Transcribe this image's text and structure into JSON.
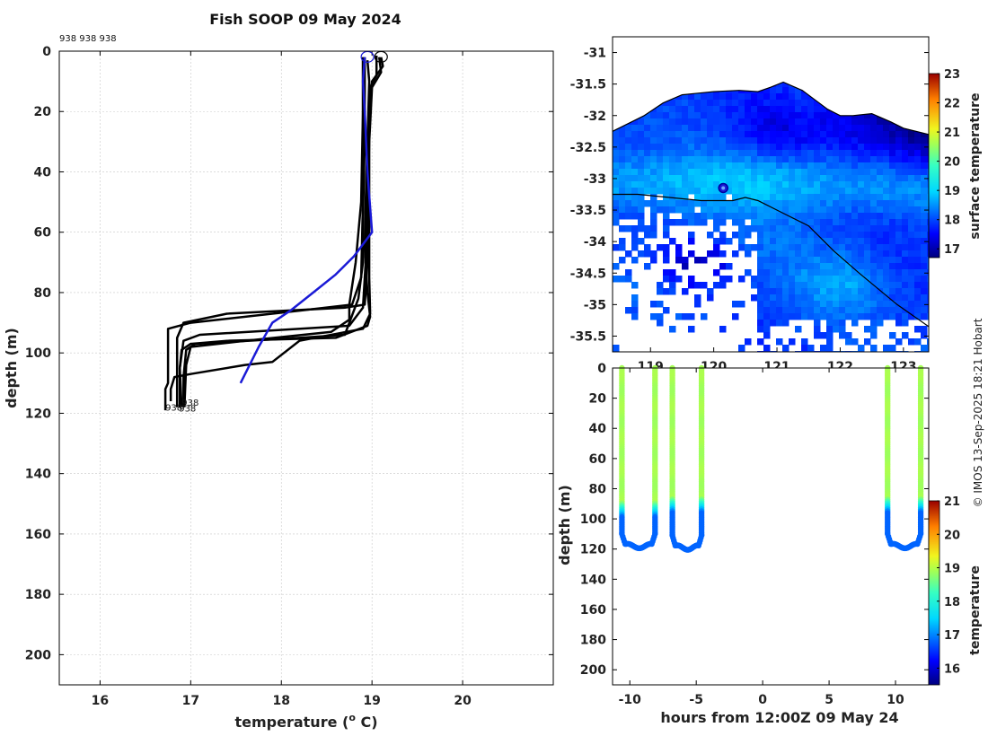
{
  "figure_title": "Fish SOOP 09 May 2024",
  "credit": "© IMOS 13-Sep-2025 18:21 Hobart",
  "chart_data": [
    {
      "id": "profiles",
      "type": "line",
      "xlabel": "temperature (° C)",
      "xlabel_main": "temperature (",
      "xlabel_sup": "o",
      "xlabel_tail": " C)",
      "ylabel": "depth (m)",
      "xlim": [
        15.55,
        21.0
      ],
      "ylim": [
        0,
        210
      ],
      "xticks": [
        "16",
        "17",
        "18",
        "19",
        "20"
      ],
      "yticks": [
        "0",
        "20",
        "40",
        "60",
        "80",
        "100",
        "120",
        "140",
        "160",
        "180",
        "200"
      ],
      "top_annotation": "938 938 938",
      "bottom_annotations": [
        {
          "text": "938",
          "x": 16.9,
          "y": 117.5
        },
        {
          "text": "938",
          "x": 16.72,
          "y": 119.2
        },
        {
          "text": "938",
          "x": 16.87,
          "y": 119.4
        }
      ],
      "start_markers": [
        {
          "x": 18.95,
          "y": 1,
          "color": "#1a1ad6"
        },
        {
          "x": 19.1,
          "y": 1,
          "color": "#000000"
        }
      ],
      "series": [
        {
          "name": "profile-1",
          "color": "#000000",
          "points": [
            [
              19.05,
              1.5
            ],
            [
              19.05,
              8
            ],
            [
              18.98,
              12
            ],
            [
              18.96,
              30
            ],
            [
              18.96,
              50
            ],
            [
              18.95,
              70
            ],
            [
              18.92,
              84
            ],
            [
              18.7,
              85
            ],
            [
              17.4,
              87
            ],
            [
              16.92,
              90
            ],
            [
              16.85,
              95
            ],
            [
              16.85,
              105
            ],
            [
              16.85,
              115
            ],
            [
              16.85,
              118
            ]
          ]
        },
        {
          "name": "profile-2",
          "color": "#000000",
          "points": [
            [
              19.08,
              2
            ],
            [
              19.1,
              7
            ],
            [
              19.0,
              12
            ],
            [
              18.97,
              30
            ],
            [
              18.95,
              50
            ],
            [
              18.93,
              70
            ],
            [
              18.9,
              85
            ],
            [
              18.75,
              91
            ],
            [
              17.1,
              94
            ],
            [
              16.92,
              96
            ],
            [
              16.88,
              105
            ],
            [
              16.88,
              118
            ]
          ]
        },
        {
          "name": "profile-3",
          "color": "#000000",
          "points": [
            [
              18.92,
              2
            ],
            [
              18.92,
              10
            ],
            [
              18.92,
              30
            ],
            [
              18.9,
              55
            ],
            [
              18.9,
              70
            ],
            [
              18.85,
              82
            ],
            [
              18.7,
              94
            ],
            [
              18.2,
              95
            ],
            [
              17.05,
              97
            ],
            [
              16.95,
              99
            ],
            [
              16.92,
              108
            ],
            [
              16.92,
              118
            ]
          ]
        },
        {
          "name": "profile-4",
          "color": "#000000",
          "points": [
            [
              18.9,
              2
            ],
            [
              18.9,
              20
            ],
            [
              18.88,
              50
            ],
            [
              18.82,
              70
            ],
            [
              18.75,
              84
            ],
            [
              18.75,
              89
            ],
            [
              18.55,
              93
            ],
            [
              17.6,
              96
            ],
            [
              17.0,
              98
            ],
            [
              16.95,
              104
            ],
            [
              16.93,
              118
            ]
          ]
        },
        {
          "name": "profile-5",
          "color": "#000000",
          "points": [
            [
              19.1,
              2
            ],
            [
              19.12,
              5
            ],
            [
              19.0,
              10
            ],
            [
              18.97,
              25
            ],
            [
              18.97,
              50
            ],
            [
              18.97,
              75
            ],
            [
              18.98,
              87
            ],
            [
              18.9,
              92
            ],
            [
              18.2,
              96
            ],
            [
              17.9,
              103
            ],
            [
              17.6,
              104
            ],
            [
              17.0,
              107
            ],
            [
              16.82,
              108
            ],
            [
              16.78,
              112
            ],
            [
              16.78,
              116
            ]
          ]
        },
        {
          "name": "profile-6",
          "color": "#000000",
          "points": [
            [
              18.95,
              3
            ],
            [
              18.97,
              10
            ],
            [
              18.95,
              30
            ],
            [
              18.93,
              50
            ],
            [
              18.92,
              65
            ],
            [
              18.95,
              80
            ],
            [
              18.98,
              88
            ],
            [
              18.95,
              91
            ],
            [
              18.6,
              95
            ],
            [
              17.4,
              96
            ],
            [
              17.0,
              97
            ],
            [
              16.9,
              99
            ],
            [
              16.88,
              105
            ],
            [
              16.9,
              118
            ]
          ]
        },
        {
          "name": "profile-7",
          "color": "#000000",
          "points": [
            [
              18.9,
              2
            ],
            [
              18.9,
              20
            ],
            [
              18.9,
              50
            ],
            [
              18.88,
              75
            ],
            [
              18.78,
              84
            ],
            [
              18.2,
              86
            ],
            [
              17.0,
              90
            ],
            [
              16.75,
              92
            ],
            [
              16.75,
              100
            ],
            [
              16.75,
              110
            ],
            [
              16.72,
              112
            ],
            [
              16.72,
              119
            ]
          ]
        },
        {
          "name": "xbt-profile",
          "color": "#1a1ad6",
          "points": [
            [
              18.92,
              2
            ],
            [
              18.9,
              10
            ],
            [
              18.92,
              20
            ],
            [
              18.95,
              40
            ],
            [
              19.0,
              60
            ],
            [
              18.8,
              68
            ],
            [
              18.6,
              74
            ],
            [
              18.35,
              80
            ],
            [
              18.1,
              86
            ],
            [
              17.9,
              90
            ],
            [
              17.75,
              98
            ],
            [
              17.55,
              110
            ]
          ]
        }
      ]
    },
    {
      "id": "sst-map",
      "type": "heatmap",
      "xticks": [
        "119",
        "120",
        "121",
        "122",
        "123"
      ],
      "xtick_values": [
        119,
        120,
        121,
        122,
        123
      ],
      "yticks": [
        "-31",
        "-31.5",
        "-32",
        "-32.5",
        "-33",
        "-33.5",
        "-34",
        "-34.5",
        "-35",
        "-35.5"
      ],
      "ytick_values": [
        -31,
        -31.5,
        -32,
        -32.5,
        -33,
        -33.5,
        -34,
        -34.5,
        -35,
        -35.5
      ],
      "xlim": [
        118.4,
        123.4
      ],
      "ylim": [
        -35.75,
        -30.75
      ],
      "colorbar": {
        "label": "surface temperature",
        "min": 16.7,
        "max": 23,
        "ticks": [
          "17",
          "18",
          "19",
          "20",
          "21",
          "22",
          "23"
        ],
        "tick_values": [
          17,
          18,
          19,
          20,
          21,
          22,
          23
        ]
      },
      "vessel_position": {
        "lon": 120.15,
        "lat": -33.15
      },
      "track": [
        [
          118.4,
          -33.25
        ],
        [
          118.8,
          -33.25
        ],
        [
          119.3,
          -33.3
        ],
        [
          119.8,
          -33.35
        ],
        [
          120.3,
          -33.35
        ],
        [
          120.5,
          -33.3
        ],
        [
          120.7,
          -33.35
        ],
        [
          121.1,
          -33.55
        ],
        [
          121.5,
          -33.75
        ],
        [
          121.9,
          -34.15
        ],
        [
          122.3,
          -34.5
        ],
        [
          122.6,
          -34.75
        ],
        [
          122.9,
          -35.0
        ],
        [
          123.4,
          -35.35
        ]
      ],
      "coast": [
        [
          118.4,
          -32.25
        ],
        [
          118.6,
          -32.15
        ],
        [
          118.9,
          -32.0
        ],
        [
          119.2,
          -31.8
        ],
        [
          119.5,
          -31.67
        ],
        [
          119.7,
          -31.65
        ],
        [
          120.0,
          -31.62
        ],
        [
          120.4,
          -31.6
        ],
        [
          120.7,
          -31.62
        ],
        [
          120.9,
          -31.55
        ],
        [
          121.1,
          -31.47
        ],
        [
          121.4,
          -31.6
        ],
        [
          121.6,
          -31.75
        ],
        [
          121.8,
          -31.9
        ],
        [
          122.0,
          -32.0
        ],
        [
          122.2,
          -32.0
        ],
        [
          122.5,
          -31.97
        ],
        [
          122.8,
          -32.1
        ],
        [
          123.0,
          -32.2
        ],
        [
          123.4,
          -32.3
        ]
      ]
    },
    {
      "id": "time-depth",
      "type": "scatter",
      "xlabel": "hours from 12:00Z 09 May 24",
      "ylabel": "depth (m)",
      "xlim": [
        -11.3,
        12.5
      ],
      "ylim": [
        0,
        210
      ],
      "xticks": [
        "-10",
        "-5",
        "0",
        "5",
        "10"
      ],
      "xtick_values": [
        -10,
        -5,
        0,
        5,
        10
      ],
      "yticks": [
        "0",
        "20",
        "40",
        "60",
        "80",
        "100",
        "120",
        "140",
        "160",
        "180",
        "200"
      ],
      "colorbar": {
        "label": "temperature",
        "min": 15.5,
        "max": 21,
        "ticks": [
          "16",
          "17",
          "18",
          "19",
          "20",
          "21"
        ],
        "tick_values": [
          16,
          17,
          18,
          19,
          20,
          21
        ]
      },
      "dives": [
        {
          "t_down": -10.6,
          "t_up": -8.1,
          "shallow_temp": 18.9,
          "deep_temp": 16.8,
          "thermo_depth": 95,
          "max_depth": 118
        },
        {
          "t_down": -6.8,
          "t_up": -4.6,
          "shallow_temp": 18.9,
          "deep_temp": 16.8,
          "thermo_depth": 92,
          "max_depth": 119
        },
        {
          "t_down": 9.4,
          "t_up": 11.9,
          "shallow_temp": 18.9,
          "deep_temp": 16.8,
          "thermo_depth": 92,
          "max_depth": 118
        }
      ]
    }
  ]
}
